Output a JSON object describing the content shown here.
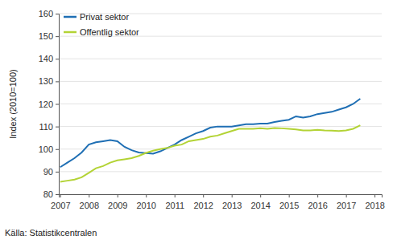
{
  "chart_data": {
    "type": "line",
    "y_label": "Index (2010=100)",
    "source": "Källa: Statistikcentralen",
    "x": [
      2007,
      2007.25,
      2007.5,
      2007.75,
      2008,
      2008.25,
      2008.5,
      2008.75,
      2009,
      2009.25,
      2009.5,
      2009.75,
      2010,
      2010.25,
      2010.5,
      2010.75,
      2011,
      2011.25,
      2011.5,
      2011.75,
      2012,
      2012.25,
      2012.5,
      2012.75,
      2013,
      2013.25,
      2013.5,
      2013.75,
      2014,
      2014.25,
      2014.5,
      2014.75,
      2015,
      2015.25,
      2015.5,
      2015.75,
      2016,
      2016.25,
      2016.5,
      2016.75,
      2017,
      2017.25,
      2017.5
    ],
    "series": [
      {
        "name": "Privat sektor",
        "color": "#1f6fb4",
        "values": [
          92,
          94,
          96,
          98.5,
          102,
          103,
          103.5,
          104,
          103.5,
          101,
          99.5,
          98.5,
          98.2,
          98,
          99,
          100.5,
          102,
          104,
          105.5,
          107,
          108,
          109.5,
          110,
          110,
          110,
          110.5,
          111,
          111,
          111.3,
          111.3,
          112,
          112.5,
          113,
          114.5,
          114,
          114.5,
          115.5,
          116,
          116.5,
          117.5,
          118.5,
          120,
          122.3
        ]
      },
      {
        "name": "Offentlig sektor",
        "color": "#b3d335",
        "values": [
          85.5,
          86,
          86.5,
          87.5,
          89.5,
          91.5,
          92.5,
          94,
          95,
          95.5,
          96,
          97,
          98.3,
          99.3,
          100,
          100.5,
          101.5,
          102,
          103.5,
          104,
          104.5,
          105.5,
          106,
          107,
          108,
          109,
          109,
          109,
          109.2,
          109,
          109.3,
          109.2,
          109,
          108.7,
          108.3,
          108.3,
          108.5,
          108.3,
          108.2,
          108,
          108.3,
          109,
          110.5
        ]
      }
    ],
    "xlim": [
      2006.95,
      2018.25
    ],
    "xticks": [
      2007,
      2008,
      2009,
      2010,
      2011,
      2012,
      2013,
      2014,
      2015,
      2016,
      2017,
      2018
    ],
    "ylim": [
      80,
      160
    ],
    "yticks": [
      80,
      90,
      100,
      110,
      120,
      130,
      140,
      150,
      160
    ],
    "grid": true,
    "legend": "upper left"
  }
}
